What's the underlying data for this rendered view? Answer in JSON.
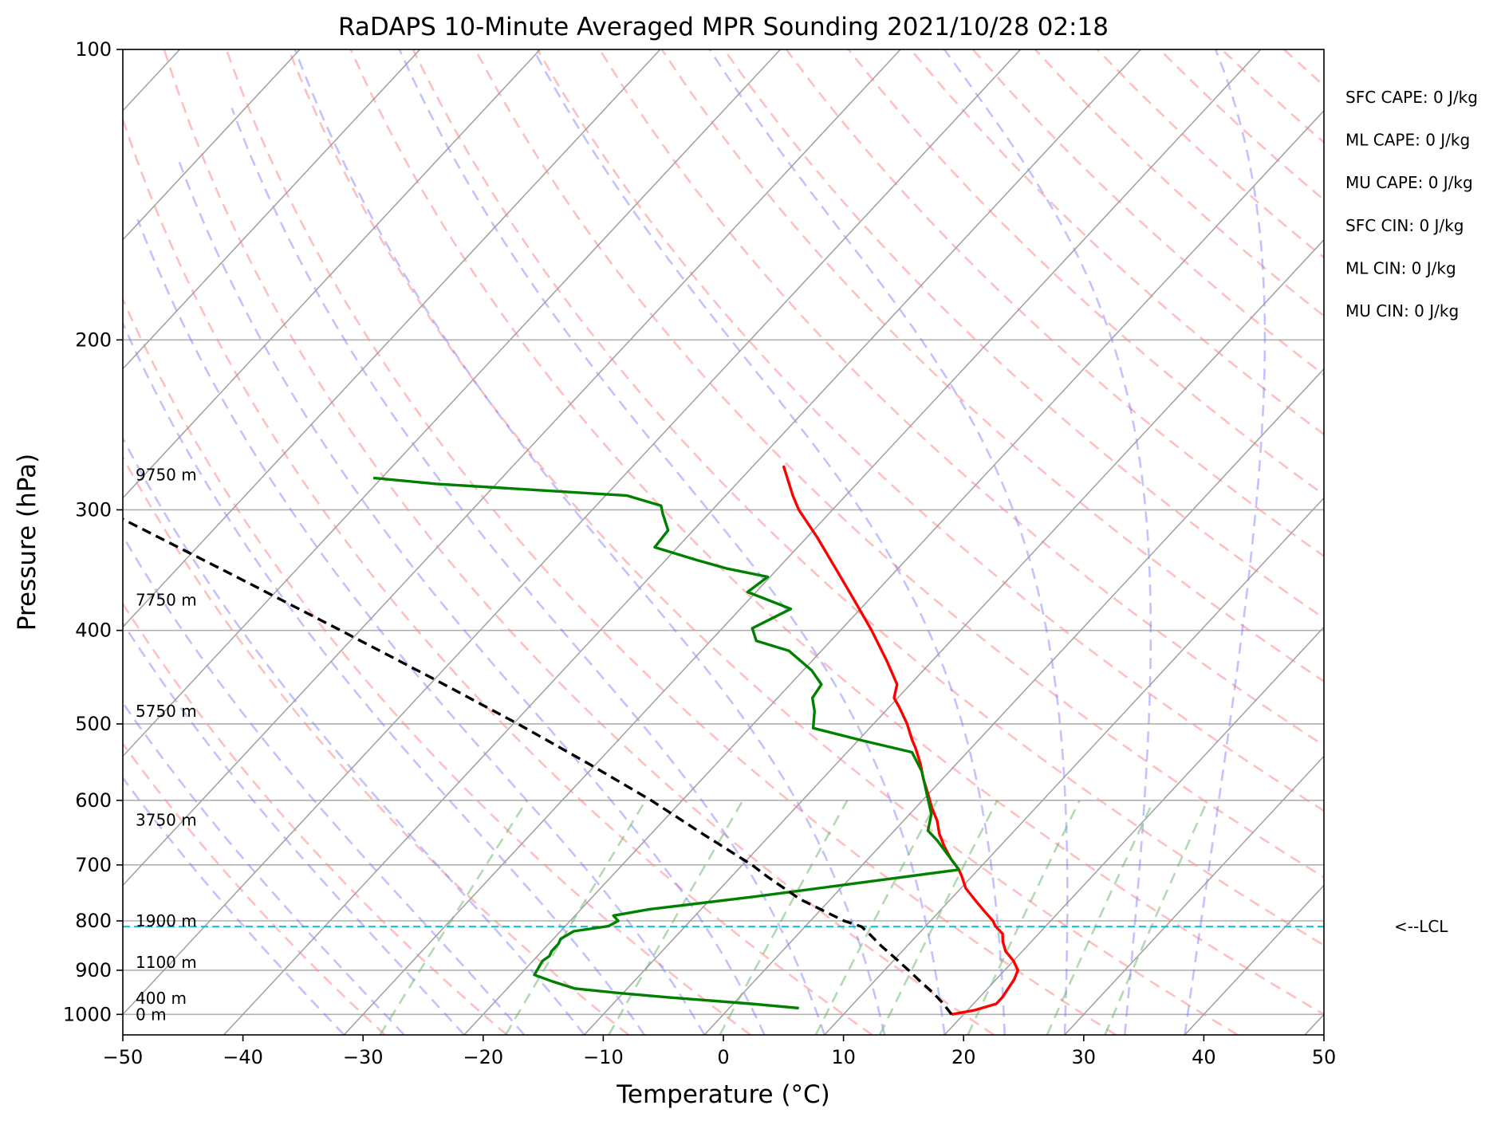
{
  "chart_data": {
    "type": "line",
    "title": "RaDAPS 10-Minute Averaged MPR Sounding 2021/10/28 02:18",
    "xlabel": "Temperature (°C)",
    "ylabel": "Pressure (hPa)",
    "xlim": [
      -50,
      50
    ],
    "ylim": [
      1050,
      100
    ],
    "y_scale": "log",
    "skew": "skew-T log-p",
    "grid": true,
    "x_ticks": [
      "−50",
      "−40",
      "−30",
      "−20",
      "−10",
      "0",
      "10",
      "20",
      "30",
      "40",
      "50"
    ],
    "x_tick_values": [
      -50,
      -40,
      -30,
      -20,
      -10,
      0,
      10,
      20,
      30,
      40,
      50
    ],
    "y_ticks": [
      "1000",
      "900",
      "800",
      "700",
      "600",
      "500",
      "400",
      "300",
      "200",
      "100"
    ],
    "y_tick_values": [
      1000,
      900,
      800,
      700,
      600,
      500,
      400,
      300,
      200,
      100
    ],
    "height_labels": [
      {
        "text": "9750 m",
        "p": 276
      },
      {
        "text": "7750 m",
        "p": 372
      },
      {
        "text": "5750 m",
        "p": 485
      },
      {
        "text": "3750 m",
        "p": 629
      },
      {
        "text": "1900 m",
        "p": 800
      },
      {
        "text": "1100 m",
        "p": 883
      },
      {
        "text": "400 m",
        "p": 962
      },
      {
        "text": "0 m",
        "p": 1000
      }
    ],
    "stats": [
      "SFC CAPE: 0 J/kg",
      "ML CAPE: 0 J/kg",
      "MU CAPE: 0 J/kg",
      "SFC CIN: 0 J/kg",
      "ML CIN: 0 J/kg",
      "MU CIN: 0 J/kg"
    ],
    "lcl": {
      "label": "<--LCL",
      "p": 811
    },
    "series": [
      {
        "color": "#ff0000",
        "points": [
          [
            1000,
            19.0
          ],
          [
            990,
            20.6
          ],
          [
            975,
            21.9
          ],
          [
            960,
            21.9
          ],
          [
            940,
            21.7
          ],
          [
            920,
            21.5
          ],
          [
            900,
            21.1
          ],
          [
            880,
            20.0
          ],
          [
            860,
            18.6
          ],
          [
            840,
            17.6
          ],
          [
            825,
            17.0
          ],
          [
            810,
            15.8
          ],
          [
            800,
            15.2
          ],
          [
            780,
            13.6
          ],
          [
            760,
            12.0
          ],
          [
            740,
            10.4
          ],
          [
            720,
            9.2
          ],
          [
            708,
            8.4
          ],
          [
            690,
            6.9
          ],
          [
            670,
            5.4
          ],
          [
            650,
            4.0
          ],
          [
            630,
            2.8
          ],
          [
            610,
            1.3
          ],
          [
            590,
            -0.1
          ],
          [
            570,
            -1.6
          ],
          [
            550,
            -3.0
          ],
          [
            530,
            -4.6
          ],
          [
            520,
            -5.5
          ],
          [
            500,
            -7.2
          ],
          [
            480,
            -9.2
          ],
          [
            470,
            -10.3
          ],
          [
            455,
            -11.1
          ],
          [
            430,
            -13.8
          ],
          [
            400,
            -17.4
          ],
          [
            370,
            -21.5
          ],
          [
            345,
            -25.2
          ],
          [
            320,
            -29.2
          ],
          [
            300,
            -32.8
          ],
          [
            290,
            -34.4
          ],
          [
            270,
            -37.5
          ]
        ]
      },
      {
        "color": "#008000",
        "points": [
          [
            985,
            5.8
          ],
          [
            975,
            1.5
          ],
          [
            960,
            -6.0
          ],
          [
            950,
            -10.5
          ],
          [
            940,
            -14.4
          ],
          [
            925,
            -16.7
          ],
          [
            910,
            -18.8
          ],
          [
            880,
            -19.2
          ],
          [
            870,
            -19.0
          ],
          [
            860,
            -19.2
          ],
          [
            845,
            -19.2
          ],
          [
            835,
            -19.4
          ],
          [
            820,
            -18.9
          ],
          [
            810,
            -16.4
          ],
          [
            800,
            -16.0
          ],
          [
            790,
            -16.8
          ],
          [
            778,
            -14.3
          ],
          [
            755,
            -6.5
          ],
          [
            708,
            8.4
          ],
          [
            690,
            6.9
          ],
          [
            660,
            4.3
          ],
          [
            645,
            2.8
          ],
          [
            620,
            1.8
          ],
          [
            590,
            -0.2
          ],
          [
            560,
            -2.3
          ],
          [
            535,
            -4.6
          ],
          [
            520,
            -9.7
          ],
          [
            505,
            -14.7
          ],
          [
            485,
            -15.9
          ],
          [
            470,
            -17.1
          ],
          [
            455,
            -17.4
          ],
          [
            440,
            -19.3
          ],
          [
            420,
            -22.7
          ],
          [
            410,
            -26.2
          ],
          [
            398,
            -27.5
          ],
          [
            380,
            -25.8
          ],
          [
            365,
            -30.7
          ],
          [
            352,
            -30.2
          ],
          [
            345,
            -34.3
          ],
          [
            338,
            -37.5
          ],
          [
            328,
            -41.9
          ],
          [
            315,
            -42.1
          ],
          [
            303,
            -43.8
          ],
          [
            297,
            -44.6
          ],
          [
            290,
            -48.2
          ],
          [
            282,
            -65.0
          ],
          [
            278,
            -70.7
          ]
        ]
      },
      {
        "color": "#000000",
        "dashed": true,
        "points": [
          [
            1000,
            19.0
          ],
          [
            975,
            17.5
          ],
          [
            950,
            15.8
          ],
          [
            925,
            13.9
          ],
          [
            900,
            12.0
          ],
          [
            875,
            10.0
          ],
          [
            850,
            7.9
          ],
          [
            825,
            5.9
          ],
          [
            811,
            4.7
          ],
          [
            800,
            2.8
          ],
          [
            760,
            -2.5
          ],
          [
            720,
            -7.0
          ],
          [
            700,
            -9.2
          ],
          [
            650,
            -15.7
          ],
          [
            600,
            -22.6
          ],
          [
            550,
            -30.6
          ],
          [
            500,
            -39.6
          ],
          [
            450,
            -49.9
          ],
          [
            400,
            -61.6
          ],
          [
            350,
            -75.0
          ],
          [
            300,
            -90.6
          ],
          [
            275,
            -99.6
          ]
        ]
      }
    ]
  }
}
